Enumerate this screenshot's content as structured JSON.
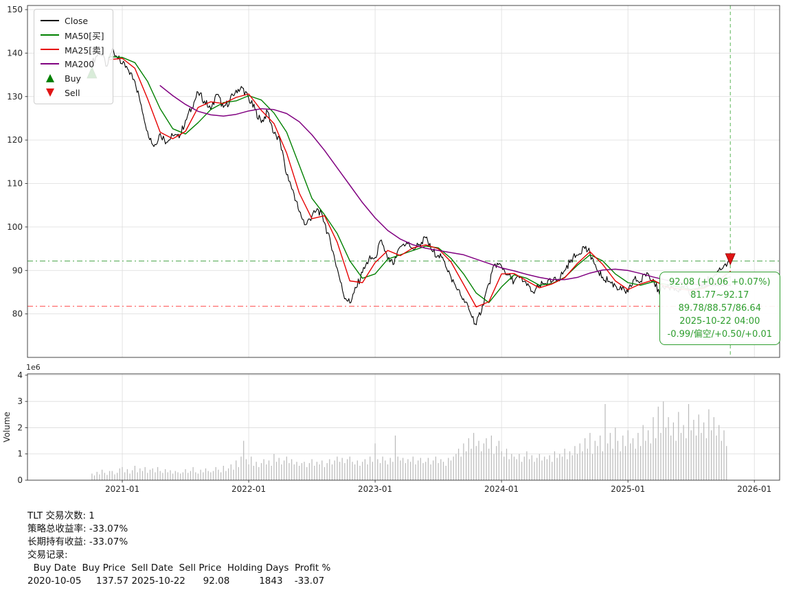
{
  "chart_data": {
    "type": "line",
    "xlim": [
      2020.25,
      2026.2
    ],
    "x_tick_values": [
      2021.0,
      2022.0,
      2023.0,
      2024.0,
      2025.0,
      2026.0
    ],
    "x_tick_labels": [
      "2021-01",
      "2022-01",
      "2023-01",
      "2024-01",
      "2025-01",
      "2026-01"
    ],
    "ylabel_volume": "Volume",
    "main": {
      "ylim": [
        70.0,
        150.95
      ],
      "yticks": [
        80,
        90,
        100,
        110,
        120,
        130,
        140,
        150
      ],
      "series": [
        {
          "name": "Close",
          "color": "#000000",
          "lw": 1.1,
          "noise": 0.9,
          "x": [
            2020.76,
            2020.82,
            2020.88,
            2020.92,
            2020.96,
            2021.0,
            2021.05,
            2021.1,
            2021.15,
            2021.2,
            2021.25,
            2021.3,
            2021.35,
            2021.4,
            2021.45,
            2021.5,
            2021.55,
            2021.6,
            2021.65,
            2021.7,
            2021.75,
            2021.8,
            2021.85,
            2021.9,
            2021.95,
            2022.0,
            2022.05,
            2022.1,
            2022.15,
            2022.2,
            2022.25,
            2022.3,
            2022.35,
            2022.4,
            2022.45,
            2022.5,
            2022.55,
            2022.6,
            2022.65,
            2022.7,
            2022.75,
            2022.8,
            2022.85,
            2022.9,
            2022.95,
            2023.0,
            2023.05,
            2023.1,
            2023.15,
            2023.2,
            2023.25,
            2023.3,
            2023.35,
            2023.4,
            2023.45,
            2023.5,
            2023.55,
            2023.6,
            2023.65,
            2023.7,
            2023.75,
            2023.8,
            2023.85,
            2023.9,
            2023.95,
            2024.0,
            2024.05,
            2024.1,
            2024.15,
            2024.2,
            2024.25,
            2024.3,
            2024.35,
            2024.4,
            2024.45,
            2024.5,
            2024.55,
            2024.6,
            2024.65,
            2024.7,
            2024.75,
            2024.8,
            2024.85,
            2024.9,
            2024.95,
            2025.0,
            2025.05,
            2025.1,
            2025.15,
            2025.2,
            2025.25,
            2025.3,
            2025.35,
            2025.4,
            2025.45,
            2025.5,
            2025.55,
            2025.6,
            2025.65,
            2025.7,
            2025.75,
            2025.81
          ],
          "y": [
            137.6,
            140.5,
            137.0,
            141.0,
            139.0,
            137.5,
            136.0,
            133.5,
            128.0,
            122.0,
            118.5,
            121.5,
            119.5,
            121.0,
            120.5,
            124.5,
            127.5,
            131.0,
            129.0,
            127.0,
            130.5,
            127.5,
            129.0,
            131.5,
            132.0,
            129.5,
            127.0,
            124.0,
            126.5,
            121.5,
            119.5,
            112.0,
            108.5,
            103.5,
            100.5,
            102.5,
            104.0,
            101.0,
            96.0,
            90.5,
            84.5,
            82.5,
            86.0,
            89.5,
            92.5,
            93.0,
            97.0,
            92.5,
            91.5,
            95.5,
            96.5,
            95.0,
            96.0,
            97.5,
            94.5,
            93.5,
            92.0,
            88.5,
            85.5,
            83.5,
            80.5,
            77.5,
            82.0,
            87.0,
            91.5,
            91.0,
            89.0,
            87.5,
            88.5,
            86.5,
            85.0,
            86.5,
            87.0,
            87.5,
            88.0,
            90.0,
            92.5,
            93.5,
            95.5,
            94.0,
            90.5,
            88.5,
            87.5,
            86.5,
            85.5,
            85.0,
            88.0,
            87.5,
            89.5,
            88.0,
            84.5,
            86.5,
            86.0,
            85.0,
            86.5,
            84.5,
            85.5,
            87.0,
            88.5,
            89.0,
            90.5,
            92.08
          ]
        },
        {
          "name": "MA50[买]",
          "color": "#008000",
          "lw": 1.4,
          "noise": 0,
          "x": [
            2020.9,
            2021.0,
            2021.1,
            2021.2,
            2021.3,
            2021.4,
            2021.5,
            2021.6,
            2021.7,
            2021.8,
            2021.9,
            2022.0,
            2022.1,
            2022.2,
            2022.3,
            2022.4,
            2022.5,
            2022.6,
            2022.7,
            2022.8,
            2022.9,
            2023.0,
            2023.1,
            2023.2,
            2023.3,
            2023.4,
            2023.5,
            2023.6,
            2023.7,
            2023.8,
            2023.9,
            2024.0,
            2024.1,
            2024.2,
            2024.3,
            2024.4,
            2024.5,
            2024.6,
            2024.7,
            2024.8,
            2024.9,
            2025.0,
            2025.1,
            2025.2,
            2025.3,
            2025.4,
            2025.5,
            2025.6,
            2025.7,
            2025.81
          ],
          "y": [
            139.2,
            139.0,
            137.8,
            133.5,
            127.2,
            122.6,
            121.4,
            124.0,
            127.0,
            128.6,
            129.0,
            130.2,
            129.2,
            126.2,
            121.8,
            114.2,
            106.6,
            102.8,
            98.5,
            92.2,
            88.2,
            89.2,
            92.6,
            93.6,
            94.6,
            95.6,
            95.2,
            92.8,
            89.2,
            84.8,
            82.6,
            86.2,
            89.0,
            88.2,
            86.6,
            87.0,
            88.4,
            91.2,
            93.6,
            92.2,
            89.2,
            87.2,
            86.6,
            87.4,
            86.8,
            86.2,
            85.6,
            86.2,
            87.0,
            88.57
          ]
        },
        {
          "name": "MA25[卖]",
          "color": "#e60000",
          "lw": 1.4,
          "noise": 0,
          "x": [
            2020.9,
            2021.0,
            2021.1,
            2021.2,
            2021.3,
            2021.4,
            2021.5,
            2021.6,
            2021.7,
            2021.8,
            2021.9,
            2022.0,
            2022.1,
            2022.2,
            2022.3,
            2022.4,
            2022.5,
            2022.6,
            2022.7,
            2022.8,
            2022.9,
            2023.0,
            2023.1,
            2023.2,
            2023.3,
            2023.4,
            2023.5,
            2023.6,
            2023.7,
            2023.8,
            2023.9,
            2024.0,
            2024.1,
            2024.2,
            2024.3,
            2024.4,
            2024.5,
            2024.6,
            2024.7,
            2024.8,
            2024.9,
            2025.0,
            2025.1,
            2025.2,
            2025.3,
            2025.4,
            2025.5,
            2025.6,
            2025.7,
            2025.81
          ],
          "y": [
            138.5,
            138.8,
            136.5,
            129.5,
            121.8,
            120.3,
            122.0,
            127.5,
            128.8,
            128.4,
            129.8,
            130.6,
            126.8,
            123.8,
            117.0,
            107.8,
            101.9,
            102.6,
            96.5,
            87.6,
            87.2,
            91.8,
            94.6,
            93.4,
            95.2,
            95.9,
            95.0,
            92.0,
            86.8,
            81.6,
            82.8,
            89.2,
            89.3,
            87.6,
            86.0,
            86.9,
            88.3,
            91.6,
            94.3,
            91.4,
            87.6,
            85.6,
            86.9,
            87.8,
            86.2,
            85.8,
            85.4,
            85.9,
            87.4,
            89.78
          ]
        },
        {
          "name": "MA200",
          "color": "#800080",
          "lw": 1.5,
          "noise": 0,
          "x": [
            2021.3,
            2021.4,
            2021.5,
            2021.6,
            2021.7,
            2021.8,
            2021.9,
            2022.0,
            2022.1,
            2022.2,
            2022.3,
            2022.4,
            2022.5,
            2022.6,
            2022.7,
            2022.8,
            2022.9,
            2023.0,
            2023.1,
            2023.2,
            2023.3,
            2023.4,
            2023.5,
            2023.6,
            2023.7,
            2023.8,
            2023.9,
            2024.0,
            2024.1,
            2024.2,
            2024.3,
            2024.4,
            2024.5,
            2024.6,
            2024.7,
            2024.8,
            2024.9,
            2025.0,
            2025.1,
            2025.2,
            2025.3,
            2025.4,
            2025.5,
            2025.6,
            2025.7,
            2025.81
          ],
          "y": [
            132.5,
            130.2,
            128.2,
            126.6,
            125.8,
            125.5,
            125.9,
            126.7,
            127.2,
            127.0,
            126.1,
            124.2,
            121.2,
            117.6,
            113.6,
            109.6,
            105.6,
            102.1,
            99.2,
            97.2,
            95.9,
            95.1,
            94.6,
            94.1,
            93.6,
            92.6,
            91.6,
            90.6,
            89.9,
            89.1,
            88.4,
            87.9,
            87.9,
            88.4,
            89.4,
            90.1,
            90.3,
            90.0,
            89.3,
            88.5,
            87.8,
            87.3,
            86.9,
            86.6,
            86.5,
            86.64
          ]
        }
      ],
      "hlines": [
        {
          "y": 92.17,
          "color": "#3a9e3a"
        },
        {
          "y": 81.77,
          "color": "#ff5252"
        }
      ],
      "vline": {
        "x": 2025.81,
        "color": "#4daf4a"
      },
      "markers": [
        {
          "type": "buy",
          "x": 2020.76,
          "y": 135.5
        },
        {
          "type": "sell",
          "x": 2025.81,
          "y": 92.6
        }
      ]
    },
    "volume": {
      "ylim": [
        0,
        4.05
      ],
      "yticks": [
        0,
        1,
        2,
        3,
        4
      ],
      "scale_label": "1e6",
      "x_start": 2020.76,
      "x_step": 0.02,
      "values": [
        0.25,
        0.18,
        0.32,
        0.22,
        0.4,
        0.28,
        0.2,
        0.35,
        0.35,
        0.22,
        0.28,
        0.45,
        0.5,
        0.3,
        0.42,
        0.25,
        0.38,
        0.55,
        0.3,
        0.45,
        0.35,
        0.5,
        0.28,
        0.4,
        0.45,
        0.3,
        0.5,
        0.35,
        0.28,
        0.42,
        0.3,
        0.38,
        0.25,
        0.35,
        0.3,
        0.25,
        0.3,
        0.42,
        0.28,
        0.35,
        0.5,
        0.3,
        0.25,
        0.4,
        0.3,
        0.45,
        0.35,
        0.3,
        0.35,
        0.5,
        0.4,
        0.3,
        0.55,
        0.35,
        0.45,
        0.6,
        0.4,
        0.75,
        0.5,
        0.9,
        1.5,
        0.8,
        0.6,
        0.9,
        0.55,
        0.7,
        0.5,
        0.65,
        0.8,
        0.6,
        0.75,
        0.55,
        1.0,
        0.7,
        0.85,
        0.6,
        0.75,
        0.9,
        0.65,
        0.8,
        0.6,
        0.7,
        0.55,
        0.65,
        0.7,
        0.5,
        0.65,
        0.8,
        0.55,
        0.7,
        0.6,
        0.75,
        0.5,
        0.65,
        0.8,
        0.6,
        0.75,
        0.9,
        0.7,
        0.85,
        0.65,
        0.8,
        0.9,
        0.7,
        0.6,
        0.75,
        0.55,
        0.7,
        0.8,
        0.6,
        0.9,
        0.7,
        1.4,
        0.8,
        0.65,
        0.9,
        0.75,
        0.6,
        0.85,
        0.7,
        1.7,
        0.9,
        0.75,
        0.85,
        0.65,
        0.8,
        0.7,
        0.9,
        0.6,
        0.75,
        0.85,
        0.65,
        0.7,
        0.85,
        0.6,
        0.75,
        0.9,
        0.65,
        0.8,
        0.7,
        0.55,
        0.85,
        0.75,
        0.9,
        1.0,
        1.2,
        0.9,
        1.4,
        1.1,
        1.6,
        1.2,
        1.8,
        1.3,
        1.5,
        1.1,
        1.4,
        1.6,
        1.2,
        1.7,
        1.0,
        1.3,
        1.5,
        1.1,
        0.9,
        1.2,
        0.8,
        1.0,
        0.9,
        0.8,
        1.0,
        0.7,
        0.9,
        1.1,
        0.8,
        0.95,
        0.7,
        0.85,
        1.0,
        0.75,
        0.9,
        0.8,
        0.95,
        0.7,
        1.1,
        0.85,
        1.0,
        0.9,
        1.2,
        0.8,
        1.1,
        0.95,
        1.3,
        1.0,
        1.4,
        1.1,
        1.6,
        1.2,
        1.8,
        1.0,
        1.5,
        1.3,
        1.7,
        1.1,
        2.9,
        1.4,
        1.8,
        1.2,
        2.0,
        1.5,
        1.1,
        1.7,
        1.3,
        1.9,
        1.4,
        1.6,
        1.2,
        1.8,
        1.3,
        2.1,
        1.5,
        1.9,
        1.4,
        2.4,
        1.6,
        2.8,
        1.8,
        3.0,
        2.0,
        2.4,
        1.7,
        2.2,
        1.5,
        2.6,
        1.8,
        2.1,
        1.6,
        2.9,
        1.9,
        2.3,
        1.7,
        2.5,
        1.8,
        2.2,
        1.6,
        2.7,
        1.9,
        2.4,
        1.7,
        2.1,
        1.5,
        1.9,
        1.3
      ]
    },
    "legend": {
      "items": [
        {
          "label": "Close",
          "color": "#000000"
        },
        {
          "label": "MA50[买]",
          "color": "#008000"
        },
        {
          "label": "MA25[卖]",
          "color": "#e60000"
        },
        {
          "label": "MA200",
          "color": "#800080"
        },
        {
          "label": "Buy",
          "color": "#008000",
          "marker": "up"
        },
        {
          "label": "Sell",
          "color": "#e01414",
          "marker": "down"
        }
      ]
    },
    "annotation": {
      "color": "#2e9e2e",
      "lines": [
        "92.08 (+0.06 +0.07%)",
        "81.77~92.17",
        "89.78/88.57/86.64",
        "2025-10-22 04:00",
        "-0.99/偏空/+0.50/+0.01"
      ]
    }
  },
  "stats": {
    "lines": [
      "TLT 交易次数: 1",
      "策略总收益率: -33.07%",
      "长期持有收益: -33.07%",
      "交易记录:",
      "  Buy Date  Buy Price  Sell Date  Sell Price  Holding Days  Profit %",
      "2020-10-05     137.57 2025-10-22      92.08          1843    -33.07"
    ]
  }
}
